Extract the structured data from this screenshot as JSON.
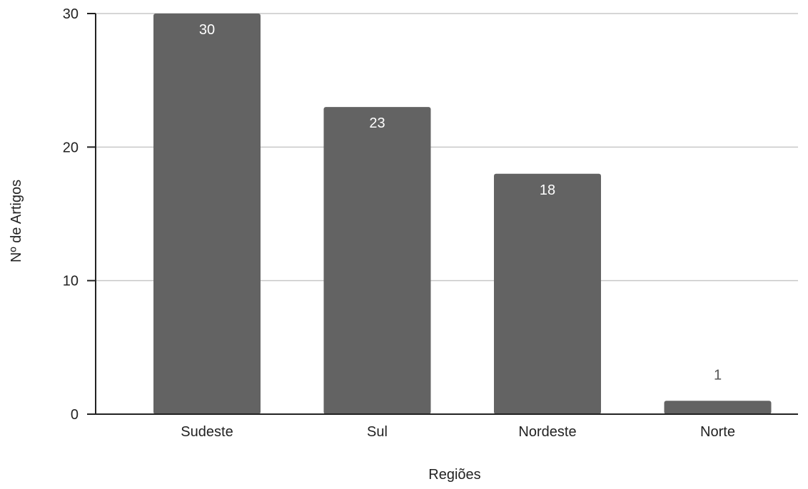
{
  "chart_data": {
    "type": "bar",
    "title": "",
    "xlabel": "Regiões",
    "ylabel": "Nº de Artigos",
    "categories": [
      "Sudeste",
      "Sul",
      "Nordeste",
      "Norte"
    ],
    "values": [
      30,
      23,
      18,
      1
    ],
    "data_labels": [
      "30",
      "23",
      "18",
      "1"
    ],
    "ylim": [
      0,
      30
    ],
    "yticks": [
      0,
      10,
      20,
      30
    ],
    "grid": true,
    "legend": "none",
    "colors": {
      "bar": "#636363",
      "grid": "#c8c8c8",
      "axis": "#222222",
      "label_inside": "#ffffff",
      "label_outside": "#555555"
    }
  }
}
